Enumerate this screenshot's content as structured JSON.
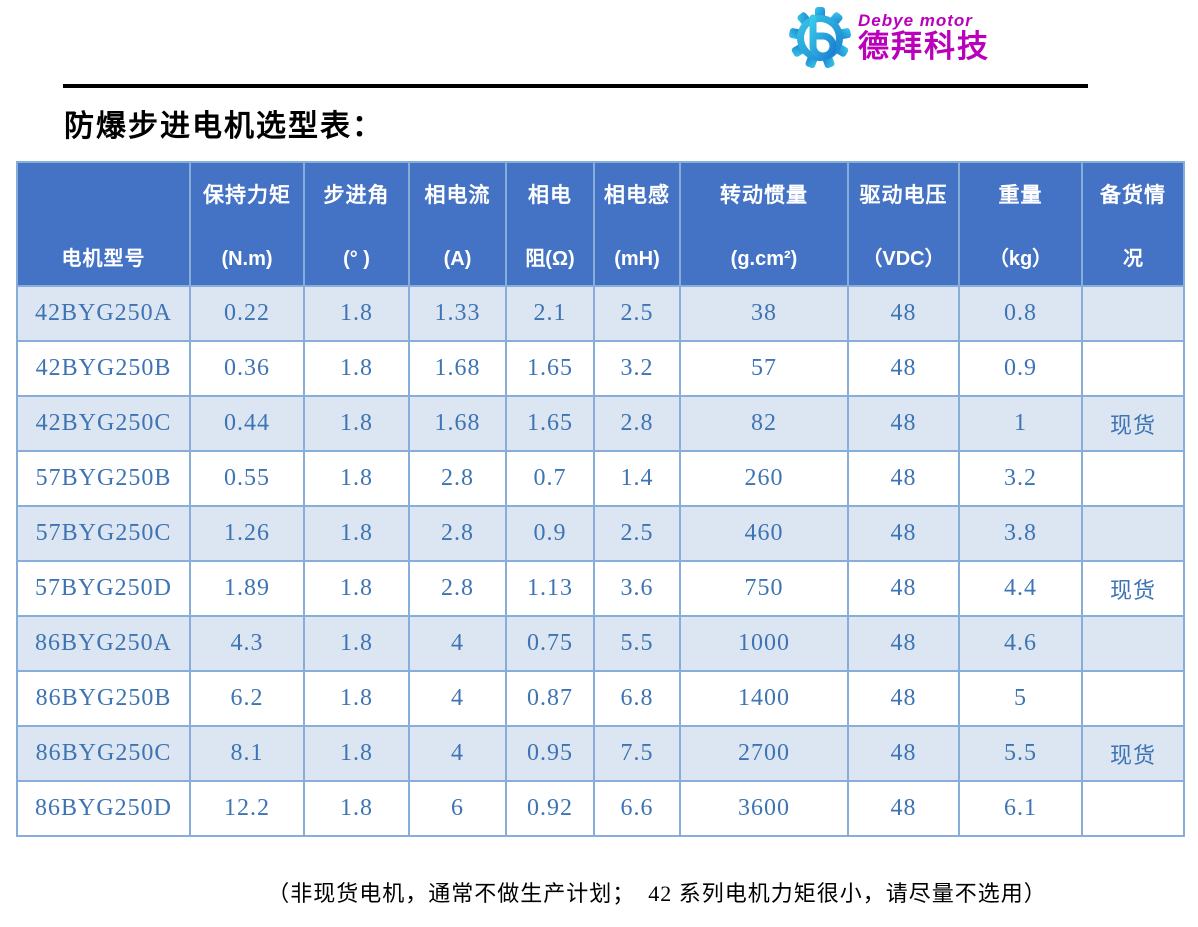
{
  "logo": {
    "brand_en": "Debye motor",
    "brand_cn": "德拜科技",
    "gear_color_light": "#38c8e8",
    "gear_color_dark": "#1b7fd0",
    "text_color": "#bb00bb"
  },
  "page": {
    "title": "防爆步进电机选型表：",
    "footnote": "（非现货电机，通常不做生产计划；  42 系列电机力矩很小，请尽量不选用）"
  },
  "table": {
    "header_color": "#4472c4",
    "row_alt_color": "#dce6f2",
    "grid_color": "#87add9",
    "value_color": "#3e74b4",
    "columns": [
      {
        "label": "电机型号",
        "unit": ""
      },
      {
        "label": "保持力矩",
        "unit": "(N.m)"
      },
      {
        "label": "步进角",
        "unit": "(° )"
      },
      {
        "label": "相电流",
        "unit": "(A)"
      },
      {
        "label": "相电",
        "unit": "阻(Ω)"
      },
      {
        "label": "相电感",
        "unit": "(mH)"
      },
      {
        "label": "转动惯量",
        "unit": "(g.cm²)"
      },
      {
        "label": "驱动电压",
        "unit": "（VDC）"
      },
      {
        "label": "重量",
        "unit": "（kg）"
      },
      {
        "label": "备货情",
        "unit": "况"
      }
    ],
    "rows": [
      [
        "42BYG250A",
        "0.22",
        "1.8",
        "1.33",
        "2.1",
        "2.5",
        "38",
        "48",
        "0.8",
        ""
      ],
      [
        "42BYG250B",
        "0.36",
        "1.8",
        "1.68",
        "1.65",
        "3.2",
        "57",
        "48",
        "0.9",
        ""
      ],
      [
        "42BYG250C",
        "0.44",
        "1.8",
        "1.68",
        "1.65",
        "2.8",
        "82",
        "48",
        "1",
        "现货"
      ],
      [
        "57BYG250B",
        "0.55",
        "1.8",
        "2.8",
        "0.7",
        "1.4",
        "260",
        "48",
        "3.2",
        ""
      ],
      [
        "57BYG250C",
        "1.26",
        "1.8",
        "2.8",
        "0.9",
        "2.5",
        "460",
        "48",
        "3.8",
        ""
      ],
      [
        "57BYG250D",
        "1.89",
        "1.8",
        "2.8",
        "1.13",
        "3.6",
        "750",
        "48",
        "4.4",
        "现货"
      ],
      [
        "86BYG250A",
        "4.3",
        "1.8",
        "4",
        "0.75",
        "5.5",
        "1000",
        "48",
        "4.6",
        ""
      ],
      [
        "86BYG250B",
        "6.2",
        "1.8",
        "4",
        "0.87",
        "6.8",
        "1400",
        "48",
        "5",
        ""
      ],
      [
        "86BYG250C",
        "8.1",
        "1.8",
        "4",
        "0.95",
        "7.5",
        "2700",
        "48",
        "5.5",
        "现货"
      ],
      [
        "86BYG250D",
        "12.2",
        "1.8",
        "6",
        "0.92",
        "6.6",
        "3600",
        "48",
        "6.1",
        ""
      ]
    ]
  }
}
